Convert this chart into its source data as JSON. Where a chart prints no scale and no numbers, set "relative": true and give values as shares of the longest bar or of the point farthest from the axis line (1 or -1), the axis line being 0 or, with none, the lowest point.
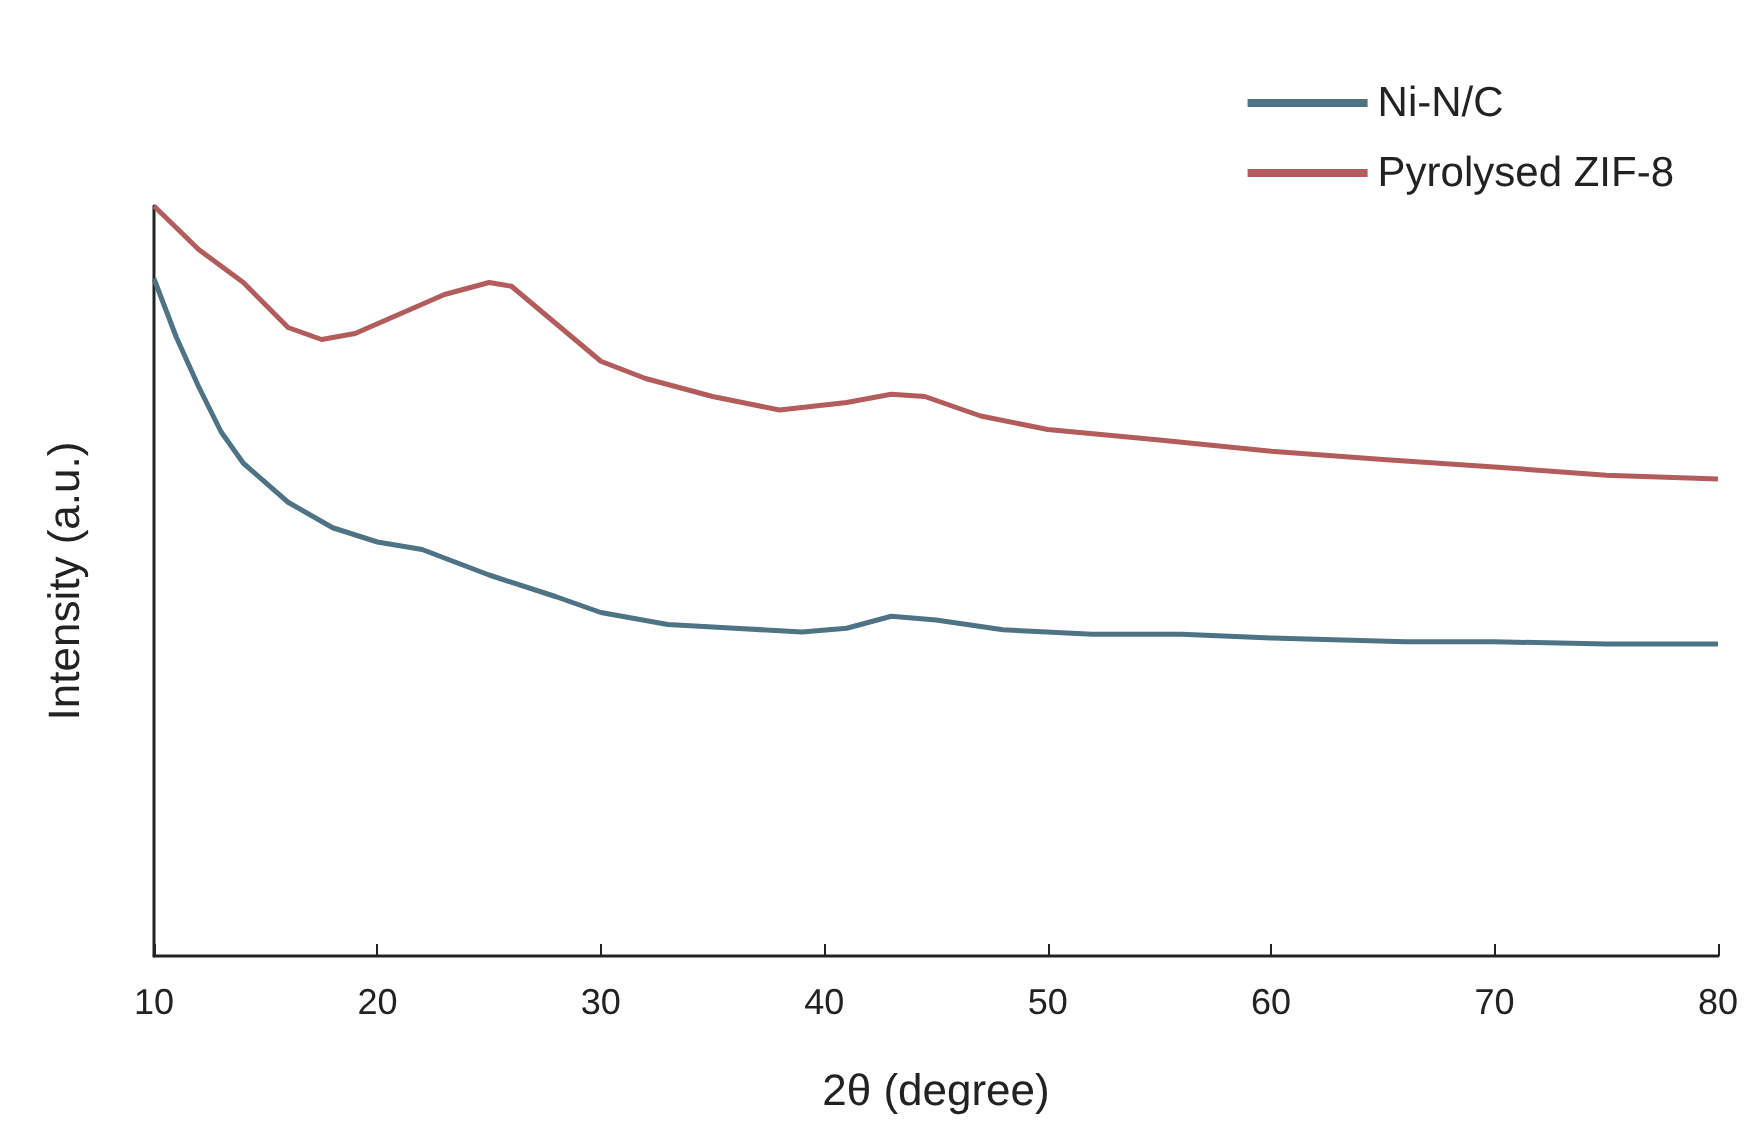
{
  "chart_data": {
    "type": "line",
    "xlabel": "2θ (degree)",
    "ylabel": "Intensity (a.u.)",
    "relative": true,
    "xlim": [
      10,
      80
    ],
    "xticks": [
      10,
      20,
      30,
      40,
      50,
      60,
      70,
      80
    ],
    "legend": "top right",
    "grid": false,
    "marker": "none",
    "line_style": "solid",
    "series": [
      {
        "name": "Ni-N/C",
        "color": "#4e7384",
        "x": [
          10,
          11,
          12,
          13,
          14,
          16,
          18,
          20,
          22,
          25,
          28,
          30,
          33,
          36,
          39,
          41,
          43,
          45,
          48,
          52,
          56,
          60,
          66,
          70,
          75,
          80
        ],
        "values": [
          0.903,
          0.825,
          0.759,
          0.699,
          0.657,
          0.605,
          0.571,
          0.552,
          0.542,
          0.508,
          0.479,
          0.458,
          0.442,
          0.437,
          0.432,
          0.437,
          0.453,
          0.448,
          0.435,
          0.429,
          0.429,
          0.424,
          0.419,
          0.419,
          0.416,
          0.416
        ]
      },
      {
        "name": "Pyrolysed ZIF-8",
        "color": "#b35c5c",
        "x": [
          10,
          12,
          14,
          16,
          17.5,
          19,
          21,
          23,
          25,
          26,
          28,
          30,
          32,
          35,
          38,
          41,
          43,
          44.5,
          47,
          50,
          55,
          60,
          65,
          70,
          75,
          80
        ],
        "values": [
          1.0,
          0.942,
          0.898,
          0.838,
          0.822,
          0.83,
          0.856,
          0.882,
          0.898,
          0.893,
          0.843,
          0.793,
          0.77,
          0.746,
          0.728,
          0.738,
          0.749,
          0.746,
          0.72,
          0.702,
          0.688,
          0.673,
          0.662,
          0.652,
          0.641,
          0.636
        ]
      }
    ]
  }
}
